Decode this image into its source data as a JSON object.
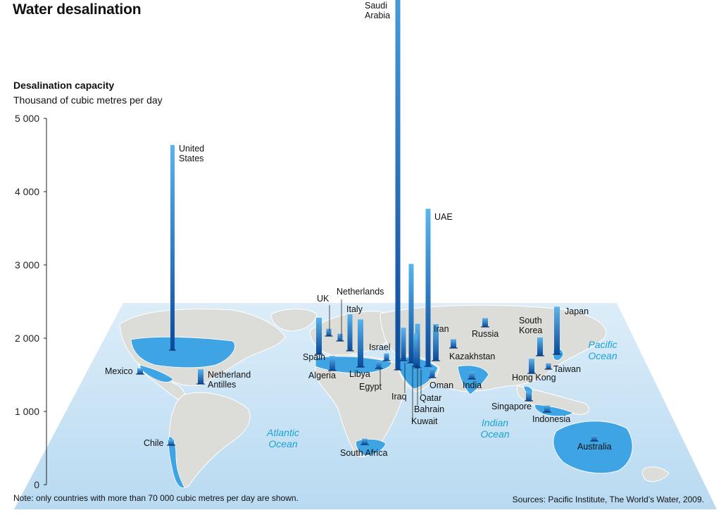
{
  "title": "Water desalination",
  "ylabel": "Desalination capacity",
  "yunit": "Thousand of cubic metres per day",
  "note": "Note: only countries with more than 70 000 cubic metres per day are shown.",
  "source": "Sources: Pacific Institute, The World’s Water, 2009.",
  "oceans": [
    {
      "name": "Atlantic Ocean",
      "lines": [
        "Atlantic",
        "Ocean"
      ]
    },
    {
      "name": "Indian Ocean",
      "lines": [
        "Indian",
        "Ocean"
      ]
    },
    {
      "name": "Pacific Ocean",
      "lines": [
        "Pacific",
        "Ocean"
      ]
    }
  ],
  "colors": {
    "bar_top": "#5ab4ec",
    "bar_bottom": "#0b4a9a",
    "plane": "#cce6f7",
    "land": "#dcdcd8",
    "highlight": "#3ea4e4",
    "ocean_label": "#1aa3d6",
    "border": "#ffffff"
  },
  "chart_data": {
    "type": "bar",
    "ylim": [
      0,
      5000
    ],
    "yticks": [
      0,
      1000,
      2000,
      3000,
      4000,
      5000
    ],
    "ytick_labels": [
      "0",
      "1 000",
      "2 000",
      "3 000",
      "4 000",
      "5 000"
    ],
    "series": [
      {
        "country": "Saudi Arabia",
        "lines": [
          "Saudi",
          "Arabia"
        ],
        "value": 6700
      },
      {
        "country": "United States",
        "lines": [
          "United",
          "States"
        ],
        "value": 2800
      },
      {
        "country": "UAE",
        "lines": [
          "UAE"
        ],
        "value": 2150
      },
      {
        "country": "Kuwait",
        "lines": [
          "Kuwait"
        ],
        "value": 1350
      },
      {
        "country": "Libya",
        "lines": [
          "Libya"
        ],
        "value": 650
      },
      {
        "country": "Japan",
        "lines": [
          "Japan"
        ],
        "value": 650
      },
      {
        "country": "Iraq",
        "lines": [
          "Iraq"
        ],
        "value": 450
      },
      {
        "country": "Qatar",
        "lines": [
          "Qatar"
        ],
        "value": 600
      },
      {
        "country": "Bahrain",
        "lines": [
          "Bahrain"
        ],
        "value": 450
      },
      {
        "country": "Spain",
        "lines": [
          "Spain"
        ],
        "value": 500
      },
      {
        "country": "Italy",
        "lines": [
          "Italy"
        ],
        "value": 500
      },
      {
        "country": "Iran",
        "lines": [
          "Iran"
        ],
        "value": 500
      },
      {
        "country": "Algeria",
        "lines": [
          "Algeria"
        ],
        "value": 200
      },
      {
        "country": "South Korea",
        "lines": [
          "South",
          "Korea"
        ],
        "value": 250
      },
      {
        "country": "Hong Kong",
        "lines": [
          "Hong Kong"
        ],
        "value": 200
      },
      {
        "country": "Netherland Antilles",
        "lines": [
          "Netherland",
          "Antilles"
        ],
        "value": 200
      },
      {
        "country": "UK",
        "lines": [
          "UK"
        ],
        "value": 100
      },
      {
        "country": "Netherlands",
        "lines": [
          "Netherlands"
        ],
        "value": 100
      },
      {
        "country": "Russia",
        "lines": [
          "Russia"
        ],
        "value": 120
      },
      {
        "country": "Kazakhstan",
        "lines": [
          "Kazakhstan"
        ],
        "value": 120
      },
      {
        "country": "Singapore",
        "lines": [
          "Singapore"
        ],
        "value": 130
      },
      {
        "country": "Oman",
        "lines": [
          "Oman"
        ],
        "value": 130
      },
      {
        "country": "India",
        "lines": [
          "India"
        ],
        "value": 100
      },
      {
        "country": "Egypt",
        "lines": [
          "Egypt"
        ],
        "value": 100
      },
      {
        "country": "Israel",
        "lines": [
          "Israel"
        ],
        "value": 100
      },
      {
        "country": "Mexico",
        "lines": [
          "Mexico"
        ],
        "value": 80
      },
      {
        "country": "Chile",
        "lines": [
          "Chile"
        ],
        "value": 75
      },
      {
        "country": "Taiwan",
        "lines": [
          "Taiwan"
        ],
        "value": 80
      },
      {
        "country": "Indonesia",
        "lines": [
          "Indonesia"
        ],
        "value": 90
      },
      {
        "country": "South Africa",
        "lines": [
          "South Africa"
        ],
        "value": 80
      },
      {
        "country": "Australia",
        "lines": [
          "Australia"
        ],
        "value": 80
      }
    ]
  }
}
